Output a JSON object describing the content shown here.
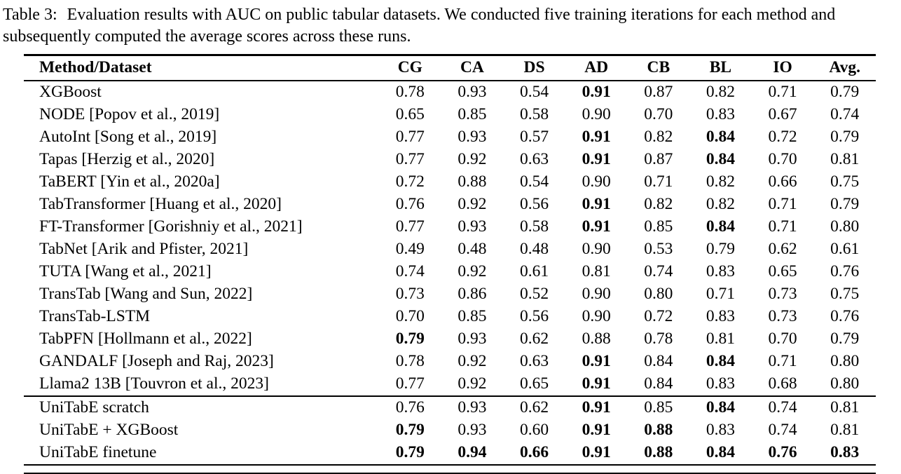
{
  "caption": {
    "label": "Table 3:",
    "text": "Evaluation results with AUC on public tabular datasets. We conducted five training iterations for each method and subsequently computed the average scores across these runs."
  },
  "table": {
    "headers": [
      "Method/Dataset",
      "CG",
      "CA",
      "DS",
      "AD",
      "CB",
      "BL",
      "IO",
      "Avg."
    ],
    "groups": [
      {
        "name": "baselines",
        "rows": [
          {
            "method": "XGBoost",
            "values": [
              "0.78",
              "0.93",
              "0.54",
              "0.91",
              "0.87",
              "0.82",
              "0.71",
              "0.79"
            ],
            "bold": [
              3
            ]
          },
          {
            "method": "NODE [Popov et al., 2019]",
            "values": [
              "0.65",
              "0.85",
              "0.58",
              "0.90",
              "0.70",
              "0.83",
              "0.67",
              "0.74"
            ],
            "bold": []
          },
          {
            "method": "AutoInt [Song et al., 2019]",
            "values": [
              "0.77",
              "0.93",
              "0.57",
              "0.91",
              "0.82",
              "0.84",
              "0.72",
              "0.79"
            ],
            "bold": [
              3,
              5
            ]
          },
          {
            "method": "Tapas [Herzig et al., 2020]",
            "values": [
              "0.77",
              "0.92",
              "0.63",
              "0.91",
              "0.87",
              "0.84",
              "0.70",
              "0.81"
            ],
            "bold": [
              3,
              5
            ]
          },
          {
            "method": "TaBERT [Yin et al., 2020a]",
            "values": [
              "0.72",
              "0.88",
              "0.54",
              "0.90",
              "0.71",
              "0.82",
              "0.66",
              "0.75"
            ],
            "bold": []
          },
          {
            "method": "TabTransformer [Huang et al., 2020]",
            "values": [
              "0.76",
              "0.92",
              "0.56",
              "0.91",
              "0.82",
              "0.82",
              "0.71",
              "0.79"
            ],
            "bold": [
              3
            ]
          },
          {
            "method": "FT-Transformer [Gorishniy et al., 2021]",
            "values": [
              "0.77",
              "0.93",
              "0.58",
              "0.91",
              "0.85",
              "0.84",
              "0.71",
              "0.80"
            ],
            "bold": [
              3,
              5
            ]
          },
          {
            "method": "TabNet [Arik and Pfister, 2021]",
            "values": [
              "0.49",
              "0.48",
              "0.48",
              "0.90",
              "0.53",
              "0.79",
              "0.62",
              "0.61"
            ],
            "bold": []
          },
          {
            "method": "TUTA [Wang et al., 2021]",
            "values": [
              "0.74",
              "0.92",
              "0.61",
              "0.81",
              "0.74",
              "0.83",
              "0.65",
              "0.76"
            ],
            "bold": []
          },
          {
            "method": "TransTab [Wang and Sun, 2022]",
            "values": [
              "0.73",
              "0.86",
              "0.52",
              "0.90",
              "0.80",
              "0.71",
              "0.73",
              "0.75"
            ],
            "bold": []
          },
          {
            "method": "TransTab-LSTM",
            "values": [
              "0.70",
              "0.85",
              "0.56",
              "0.90",
              "0.72",
              "0.83",
              "0.73",
              "0.76"
            ],
            "bold": []
          },
          {
            "method": "TabPFN [Hollmann et al., 2022]",
            "values": [
              "0.79",
              "0.93",
              "0.62",
              "0.88",
              "0.78",
              "0.81",
              "0.70",
              "0.79"
            ],
            "bold": [
              0
            ]
          },
          {
            "method": "GANDALF [Joseph and Raj, 2023]",
            "values": [
              "0.78",
              "0.92",
              "0.63",
              "0.91",
              "0.84",
              "0.84",
              "0.71",
              "0.80"
            ],
            "bold": [
              3,
              5
            ]
          },
          {
            "method": "Llama2 13B [Touvron et al., 2023]",
            "values": [
              "0.77",
              "0.92",
              "0.65",
              "0.91",
              "0.84",
              "0.83",
              "0.68",
              "0.80"
            ],
            "bold": [
              3
            ]
          }
        ]
      },
      {
        "name": "unitabe",
        "rows": [
          {
            "method": "UniTabE scratch",
            "values": [
              "0.76",
              "0.93",
              "0.62",
              "0.91",
              "0.85",
              "0.84",
              "0.74",
              "0.81"
            ],
            "bold": [
              3,
              5
            ]
          },
          {
            "method": "UniTabE + XGBoost",
            "values": [
              "0.79",
              "0.93",
              "0.60",
              "0.91",
              "0.88",
              "0.83",
              "0.74",
              "0.81"
            ],
            "bold": [
              0,
              3,
              4
            ]
          },
          {
            "method": "UniTabE finetune",
            "values": [
              "0.79",
              "0.94",
              "0.66",
              "0.91",
              "0.88",
              "0.84",
              "0.76",
              "0.83"
            ],
            "bold": [
              0,
              1,
              2,
              3,
              4,
              5,
              6,
              7
            ]
          }
        ]
      }
    ]
  }
}
